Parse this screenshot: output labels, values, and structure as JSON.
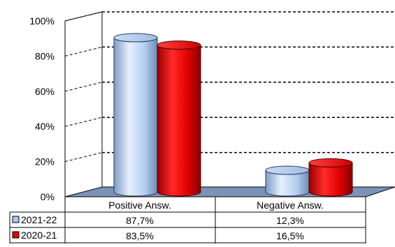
{
  "chart_data": {
    "type": "bar",
    "style": "3d-cylinder",
    "categories": [
      "Positive Answ.",
      "Negative Answ."
    ],
    "series": [
      {
        "name": "2021-22",
        "values": [
          87.7,
          12.3
        ],
        "labels": [
          "87,7%",
          "12,3%"
        ],
        "color": "#a9c8f0"
      },
      {
        "name": "2020-21",
        "values": [
          83.5,
          16.5
        ],
        "labels": [
          "83,5%",
          "16,5%"
        ],
        "color": "#e00000"
      }
    ],
    "ylim": [
      0,
      100
    ],
    "yticks": [
      0,
      20,
      40,
      60,
      80,
      100
    ],
    "ytick_labels": [
      "0%",
      "20%",
      "40%",
      "60%",
      "80%",
      "100%"
    ],
    "grid": true,
    "legend": "data-table-left",
    "colors": {
      "floor": "#7b93b8",
      "grid": "#000000",
      "wall": "#ffffff"
    }
  }
}
